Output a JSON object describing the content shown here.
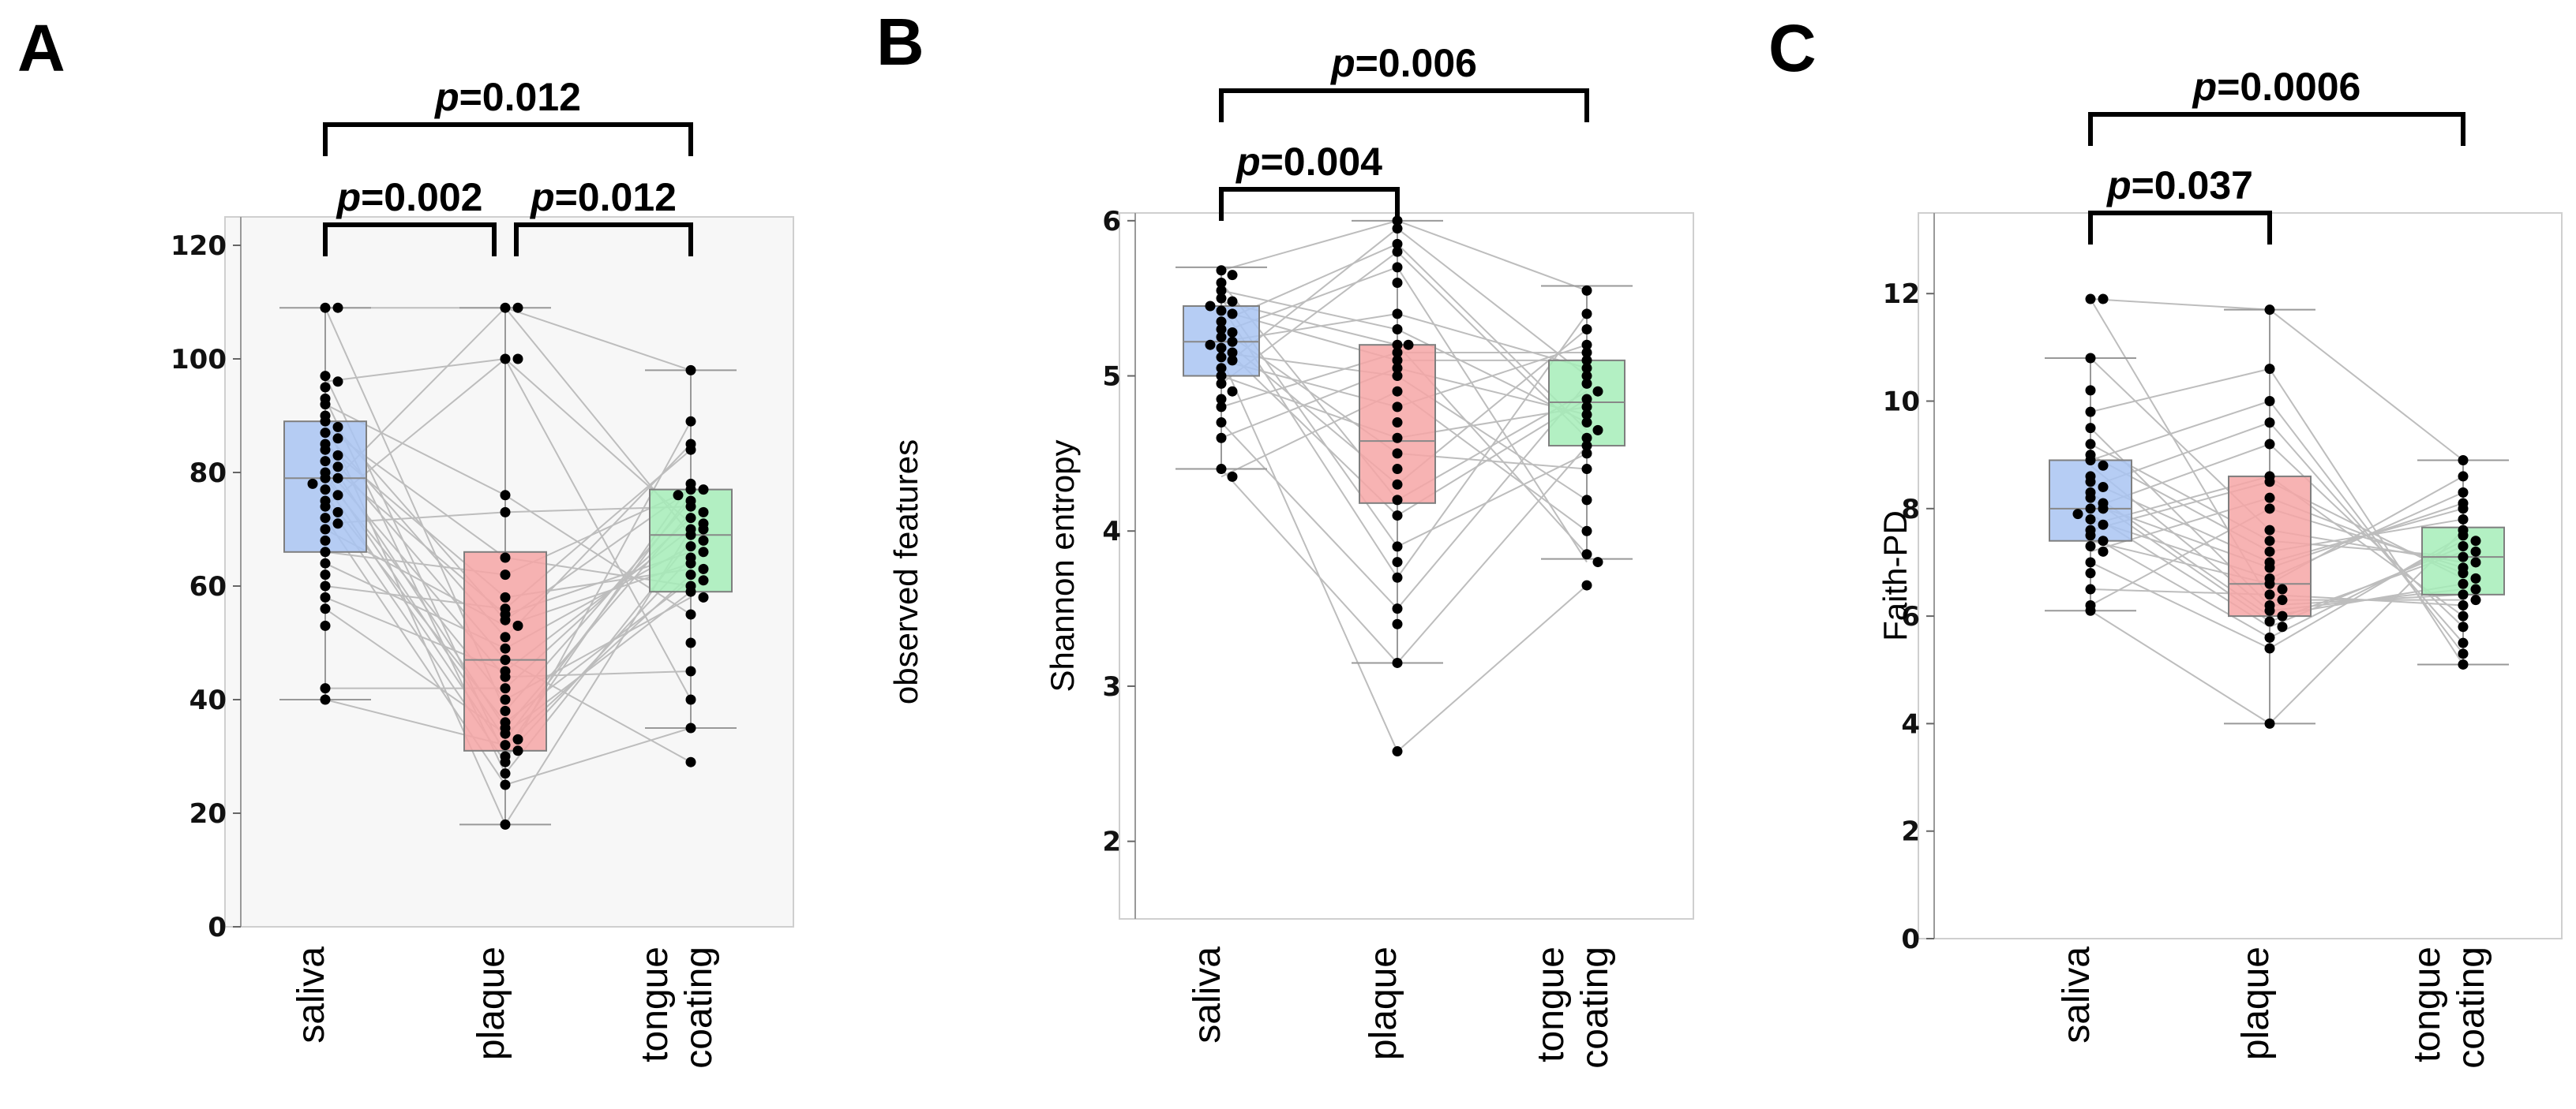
{
  "chart_data": [
    {
      "panel": "A",
      "type": "box",
      "ylabel": "observed features",
      "ylim": [
        0,
        125
      ],
      "yticks": [
        0,
        20,
        40,
        60,
        80,
        100,
        120
      ],
      "categories": [
        [
          "saliva"
        ],
        [
          "plaque"
        ],
        [
          "tongue",
          "coating"
        ]
      ],
      "colors": [
        "#a9c4f2",
        "#f6a6a6",
        "#a6edb8"
      ],
      "boxes": [
        {
          "min": 40,
          "q1": 66,
          "median": 79,
          "q3": 89,
          "max": 109
        },
        {
          "min": 18,
          "q1": 31,
          "median": 47,
          "q3": 66,
          "max": 109
        },
        {
          "min": 35,
          "q1": 59,
          "median": 69,
          "q3": 77,
          "max": 98
        }
      ],
      "points": [
        [
          109,
          109,
          97,
          96,
          95,
          93,
          92,
          90,
          89,
          88,
          87,
          86,
          85,
          84,
          83,
          82,
          81,
          80,
          79,
          79,
          78,
          77,
          76,
          75,
          74,
          73,
          72,
          71,
          70,
          68,
          66,
          64,
          62,
          60,
          58,
          56,
          53,
          42,
          40
        ],
        [
          109,
          109,
          100,
          100,
          76,
          73,
          65,
          62,
          58,
          56,
          55,
          54,
          53,
          51,
          49,
          47,
          45,
          44,
          42,
          40,
          38,
          36,
          35,
          34,
          33,
          32,
          31,
          30,
          29,
          27,
          25,
          18
        ],
        [
          98,
          89,
          85,
          84,
          78,
          77,
          77,
          76,
          75,
          74,
          73,
          72,
          71,
          70,
          70,
          69,
          68,
          67,
          66,
          65,
          64,
          63,
          62,
          61,
          60,
          59,
          58,
          55,
          50,
          45,
          40,
          35,
          29
        ]
      ],
      "comparisons": [
        {
          "from": 0,
          "to": 2,
          "p": "0.012"
        },
        {
          "from": 0,
          "to": 1,
          "p": "0.002"
        },
        {
          "from": 1,
          "to": 2,
          "p": "0.012"
        }
      ]
    },
    {
      "panel": "B",
      "type": "box",
      "ylabel": "Shannon entropy",
      "ylim": [
        1.5,
        6.05
      ],
      "yticks": [
        2,
        3,
        4,
        5,
        6
      ],
      "categories": [
        [
          "saliva"
        ],
        [
          "plaque"
        ],
        [
          "tongue",
          "coating"
        ]
      ],
      "colors": [
        "#a9c4f2",
        "#f6a6a6",
        "#a6edb8"
      ],
      "boxes": [
        {
          "min": 4.4,
          "q1": 5.0,
          "median": 5.22,
          "q3": 5.45,
          "max": 5.7
        },
        {
          "min": 3.15,
          "q1": 4.18,
          "median": 4.58,
          "q3": 5.2,
          "max": 6.0
        },
        {
          "min": 3.82,
          "q1": 4.55,
          "median": 4.83,
          "q3": 5.1,
          "max": 5.58
        }
      ],
      "points": [
        [
          5.68,
          5.65,
          5.6,
          5.55,
          5.5,
          5.48,
          5.45,
          5.42,
          5.4,
          5.35,
          5.3,
          5.28,
          5.25,
          5.22,
          5.2,
          5.18,
          5.15,
          5.12,
          5.1,
          5.05,
          5.0,
          4.95,
          4.9,
          4.85,
          4.8,
          4.7,
          4.6,
          4.4,
          4.35
        ],
        [
          6.0,
          5.95,
          5.85,
          5.8,
          5.7,
          5.6,
          5.4,
          5.3,
          5.2,
          5.2,
          5.15,
          5.1,
          5.05,
          5.0,
          4.9,
          4.8,
          4.7,
          4.6,
          4.5,
          4.4,
          4.3,
          4.2,
          4.1,
          3.9,
          3.8,
          3.7,
          3.5,
          3.4,
          3.15,
          2.58
        ],
        [
          5.55,
          5.4,
          5.3,
          5.2,
          5.15,
          5.1,
          5.05,
          5.0,
          4.95,
          4.9,
          4.85,
          4.8,
          4.75,
          4.7,
          4.65,
          4.6,
          4.55,
          4.5,
          4.4,
          4.2,
          4.0,
          3.85,
          3.8,
          3.65
        ]
      ],
      "comparisons": [
        {
          "from": 0,
          "to": 2,
          "p": "0.006"
        },
        {
          "from": 0,
          "to": 1,
          "p": "0.004"
        }
      ]
    },
    {
      "panel": "C",
      "type": "box",
      "ylabel": "Faith-PD",
      "ylim": [
        0,
        13.5
      ],
      "yticks": [
        0,
        2,
        4,
        6,
        8,
        10,
        12
      ],
      "categories": [
        [
          "saliva"
        ],
        [
          "plaque"
        ],
        [
          "tongue",
          "coating"
        ]
      ],
      "colors": [
        "#a9c4f2",
        "#f6a6a6",
        "#a6edb8"
      ],
      "boxes": [
        {
          "min": 6.1,
          "q1": 7.4,
          "median": 8.0,
          "q3": 8.9,
          "max": 10.8
        },
        {
          "min": 4.0,
          "q1": 6.0,
          "median": 6.6,
          "q3": 8.6,
          "max": 11.7
        },
        {
          "min": 5.1,
          "q1": 6.4,
          "median": 7.1,
          "q3": 7.65,
          "max": 8.9
        }
      ],
      "points": [
        [
          11.9,
          11.9,
          10.8,
          10.2,
          9.8,
          9.5,
          9.2,
          9.0,
          8.9,
          8.8,
          8.6,
          8.5,
          8.4,
          8.3,
          8.2,
          8.1,
          8.0,
          8.0,
          7.9,
          7.8,
          7.7,
          7.6,
          7.5,
          7.4,
          7.3,
          7.2,
          7.0,
          6.8,
          6.5,
          6.2,
          6.1
        ],
        [
          11.7,
          10.6,
          10.0,
          9.6,
          9.2,
          8.6,
          8.5,
          8.2,
          8.0,
          7.6,
          7.4,
          7.2,
          7.0,
          6.9,
          6.7,
          6.6,
          6.5,
          6.4,
          6.3,
          6.2,
          6.1,
          6.0,
          5.9,
          5.8,
          5.6,
          5.4,
          4.0
        ],
        [
          8.9,
          8.6,
          8.3,
          8.1,
          8.0,
          7.8,
          7.6,
          7.5,
          7.4,
          7.3,
          7.2,
          7.1,
          7.0,
          6.9,
          6.8,
          6.7,
          6.6,
          6.5,
          6.4,
          6.3,
          6.2,
          6.0,
          5.8,
          5.5,
          5.3,
          5.1
        ]
      ],
      "comparisons": [
        {
          "from": 0,
          "to": 2,
          "p": "0.0006"
        },
        {
          "from": 0,
          "to": 1,
          "p": "0.037"
        }
      ]
    }
  ]
}
